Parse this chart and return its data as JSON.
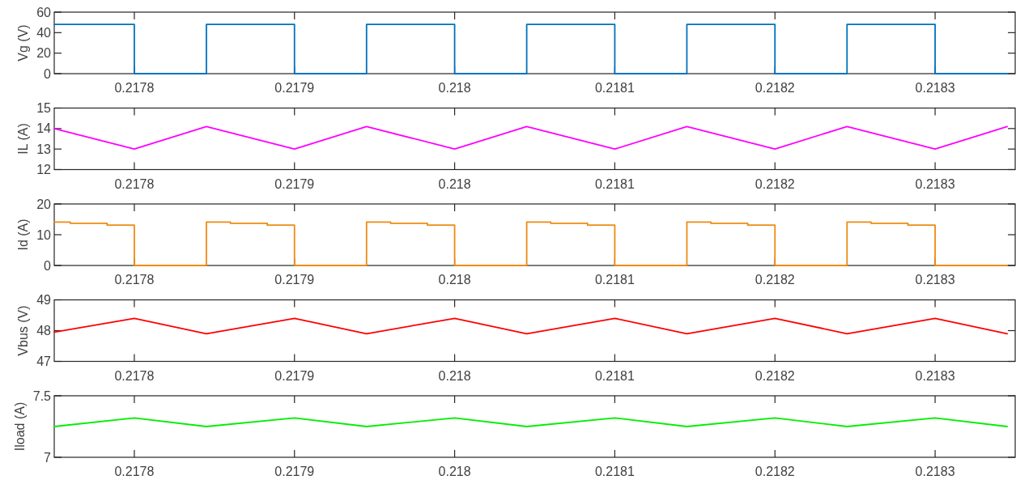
{
  "chart_data": [
    {
      "type": "line",
      "ylabel": "Vg (V)",
      "xlim": [
        0.21775,
        0.21835
      ],
      "xticks": [
        0.2178,
        0.2179,
        0.218,
        0.2181,
        0.2182,
        0.2183
      ],
      "ylim": [
        0,
        60
      ],
      "yticks": [
        0,
        20,
        40,
        60
      ],
      "x": [
        0.21775,
        0.2178,
        0.2178,
        0.217845,
        0.217845,
        0.2179,
        0.2179,
        0.217945,
        0.217945,
        0.218,
        0.218,
        0.218045,
        0.218045,
        0.2181,
        0.2181,
        0.218145,
        0.218145,
        0.2182,
        0.2182,
        0.218245,
        0.218245,
        0.2183,
        0.2183,
        0.218345
      ],
      "series": [
        {
          "color": "#0072bd",
          "values": [
            48,
            48,
            0,
            0,
            48,
            48,
            0,
            0,
            48,
            48,
            0,
            0,
            48,
            48,
            0,
            0,
            48,
            48,
            0,
            0,
            48,
            48,
            0,
            0
          ]
        }
      ]
    },
    {
      "type": "line",
      "ylabel": "IL (A)",
      "xlim": [
        0.21775,
        0.21835
      ],
      "xticks": [
        0.2178,
        0.2179,
        0.218,
        0.2181,
        0.2182,
        0.2183
      ],
      "ylim": [
        12,
        15
      ],
      "yticks": [
        12,
        13,
        14,
        15
      ],
      "x": [
        0.21775,
        0.2178,
        0.217845,
        0.2179,
        0.217945,
        0.218,
        0.218045,
        0.2181,
        0.218145,
        0.2182,
        0.218245,
        0.2183,
        0.218345
      ],
      "series": [
        {
          "color": "#ff00ff",
          "values": [
            14.0,
            13.0,
            14.1,
            13.0,
            14.1,
            13.0,
            14.1,
            13.0,
            14.1,
            13.0,
            14.1,
            13.0,
            14.1
          ]
        }
      ]
    },
    {
      "type": "line",
      "ylabel": "Id (A)",
      "xlim": [
        0.21775,
        0.21835
      ],
      "xticks": [
        0.2178,
        0.2179,
        0.218,
        0.2181,
        0.2182,
        0.2183
      ],
      "ylim": [
        0,
        20
      ],
      "yticks": [
        0,
        10,
        20
      ],
      "x": [
        0.21775,
        0.21776,
        0.21776,
        0.217783,
        0.217783,
        0.2178,
        0.2178,
        0.217845,
        0.217845,
        0.21786,
        0.21786,
        0.217883,
        0.217883,
        0.2179,
        0.2179,
        0.217945,
        0.217945,
        0.21796,
        0.21796,
        0.217983,
        0.217983,
        0.218,
        0.218,
        0.218045,
        0.218045,
        0.21806,
        0.21806,
        0.218083,
        0.218083,
        0.2181,
        0.2181,
        0.218145,
        0.218145,
        0.21816,
        0.21816,
        0.218183,
        0.218183,
        0.2182,
        0.2182,
        0.218245,
        0.218245,
        0.21826,
        0.21826,
        0.218283,
        0.218283,
        0.2183,
        0.2183,
        0.218345
      ],
      "series": [
        {
          "color": "#ee8a12",
          "values": [
            14.1,
            14.1,
            13.7,
            13.7,
            13.1,
            13.1,
            0,
            0,
            14.1,
            14.1,
            13.7,
            13.7,
            13.1,
            13.1,
            0,
            0,
            14.1,
            14.1,
            13.7,
            13.7,
            13.1,
            13.1,
            0,
            0,
            14.1,
            14.1,
            13.7,
            13.7,
            13.1,
            13.1,
            0,
            0,
            14.1,
            14.1,
            13.7,
            13.7,
            13.1,
            13.1,
            0,
            0,
            14.1,
            14.1,
            13.7,
            13.7,
            13.1,
            13.1,
            0,
            0
          ]
        }
      ]
    },
    {
      "type": "line",
      "ylabel": "Vbus (V)",
      "xlim": [
        0.21775,
        0.21835
      ],
      "xticks": [
        0.2178,
        0.2179,
        0.218,
        0.2181,
        0.2182,
        0.2183
      ],
      "ylim": [
        47,
        49
      ],
      "yticks": [
        47,
        48,
        49
      ],
      "x": [
        0.21775,
        0.2178,
        0.217845,
        0.2179,
        0.217945,
        0.218,
        0.218045,
        0.2181,
        0.218145,
        0.2182,
        0.218245,
        0.2183,
        0.218345
      ],
      "series": [
        {
          "color": "#ff0000",
          "values": [
            47.95,
            48.4,
            47.9,
            48.4,
            47.9,
            48.4,
            47.9,
            48.4,
            47.9,
            48.4,
            47.9,
            48.4,
            47.9
          ]
        }
      ]
    },
    {
      "type": "line",
      "ylabel": "Iload (A)",
      "xlim": [
        0.21775,
        0.21835
      ],
      "xticks": [
        0.2178,
        0.2179,
        0.218,
        0.2181,
        0.2182,
        0.2183
      ],
      "ylim": [
        7,
        7.5
      ],
      "yticks": [
        7,
        7.5
      ],
      "x": [
        0.21775,
        0.2178,
        0.217845,
        0.2179,
        0.217945,
        0.218,
        0.218045,
        0.2181,
        0.218145,
        0.2182,
        0.218245,
        0.2183,
        0.218345
      ],
      "series": [
        {
          "color": "#00ee00",
          "values": [
            7.25,
            7.32,
            7.25,
            7.32,
            7.25,
            7.32,
            7.25,
            7.32,
            7.25,
            7.32,
            7.25,
            7.32,
            7.25
          ]
        }
      ]
    }
  ]
}
